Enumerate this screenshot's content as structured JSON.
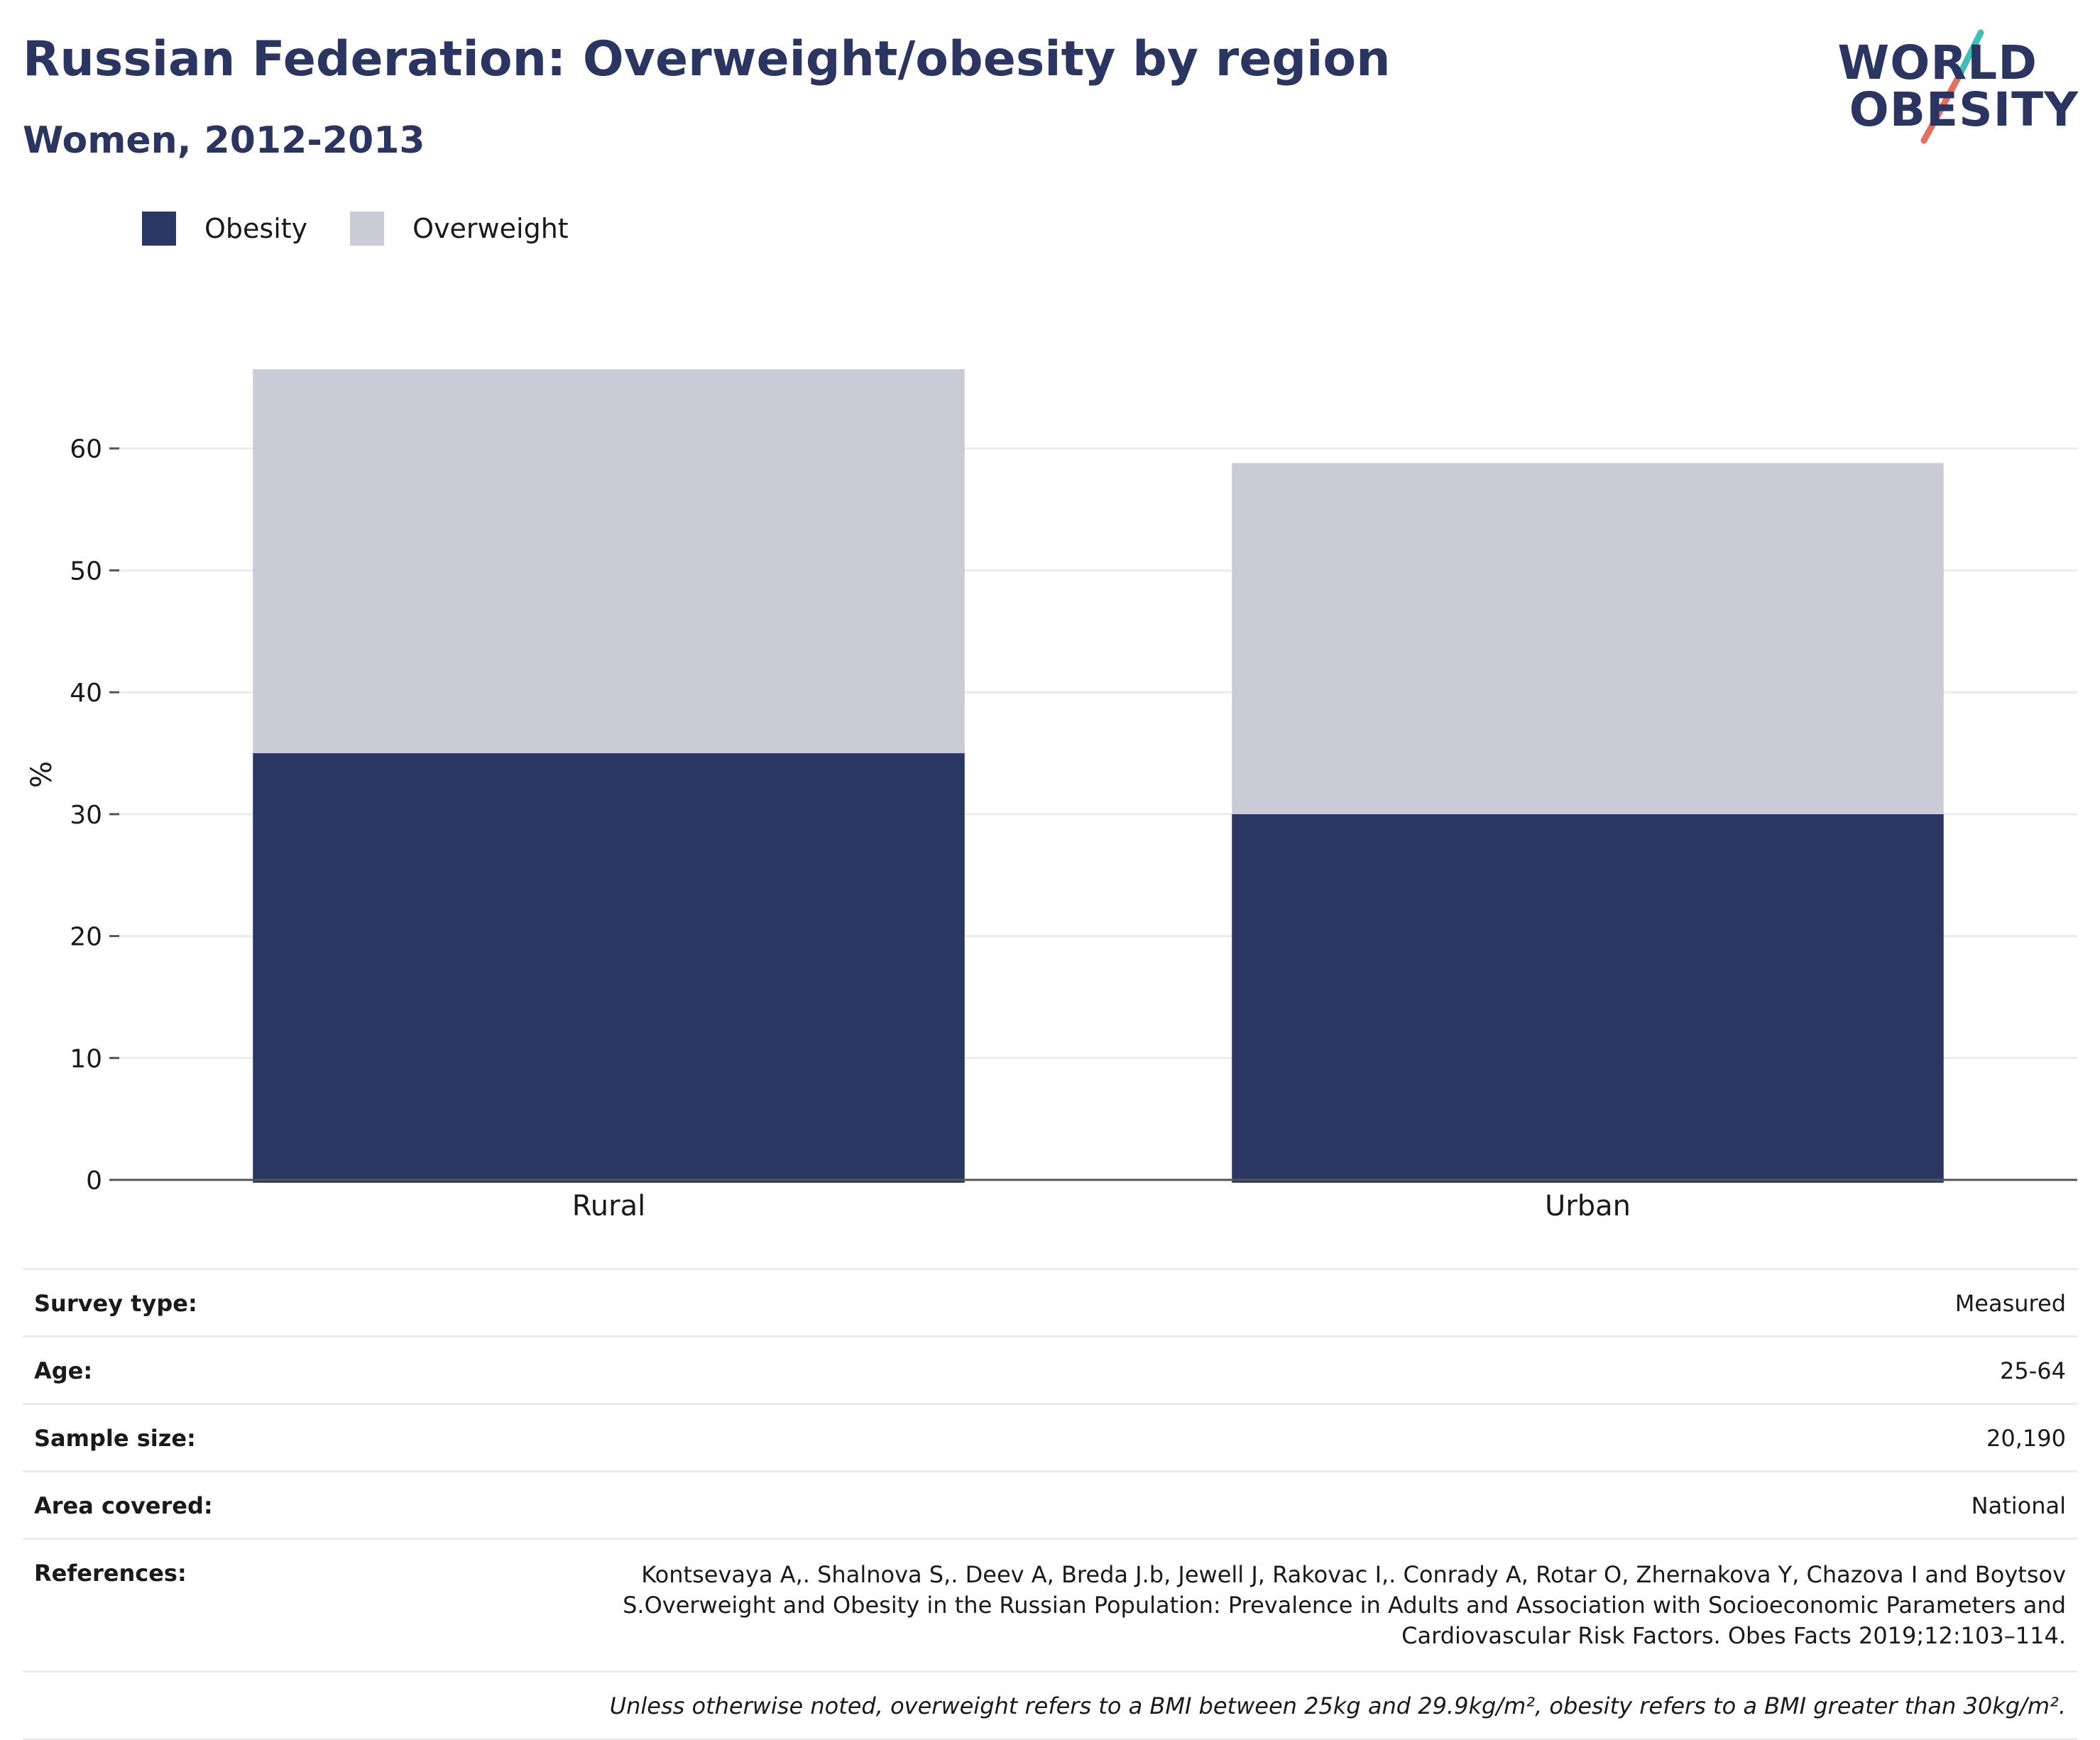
{
  "header": {
    "title": "Russian Federation: Overweight/obesity by region",
    "subtitle": "Women, 2012-2013"
  },
  "logo": {
    "line1": "WORLD",
    "line2": "OBESITY"
  },
  "colors": {
    "obesity": "#2b3763",
    "overweight": "#cacbd6",
    "title": "#2b3561",
    "gridline": "#ebebeb",
    "axis": "#555555"
  },
  "legend": [
    {
      "label": "Obesity",
      "color": "#2b3763"
    },
    {
      "label": "Overweight",
      "color": "#cacbd6"
    }
  ],
  "chart_data": {
    "type": "bar",
    "stacked": true,
    "categories": [
      "Rural",
      "Urban"
    ],
    "series": [
      {
        "name": "Obesity",
        "values": [
          35,
          30
        ]
      },
      {
        "name": "Overweight",
        "values": [
          31.5,
          28.8
        ]
      }
    ],
    "ylabel": "%",
    "ylim": [
      0,
      70
    ],
    "yticks": [
      0,
      10,
      20,
      30,
      40,
      50,
      60
    ],
    "grid": true,
    "legend_position": "top-left"
  },
  "meta": {
    "survey_type_label": "Survey type:",
    "survey_type_value": "Measured",
    "age_label": "Age:",
    "age_value": "25-64",
    "sample_size_label": "Sample size:",
    "sample_size_value": "20,190",
    "area_label": "Area covered:",
    "area_value": "National",
    "references_label": "References:",
    "references_value": "Kontsevaya A,. Shalnova S,. Deev A, Breda J.b, Jewell J, Rakovac I,. Conrady A, Rotar O, Zhernakova Y, Chazova I and Boytsov S.Overweight and Obesity in the Russian Population: Prevalence in Adults and Association with Socioeconomic Parameters and Cardiovascular Risk Factors. Obes Facts 2019;12:103–114.",
    "note": "Unless otherwise noted, overweight refers to a BMI between 25kg and 29.9kg/m², obesity refers to a BMI greater than 30kg/m²."
  }
}
